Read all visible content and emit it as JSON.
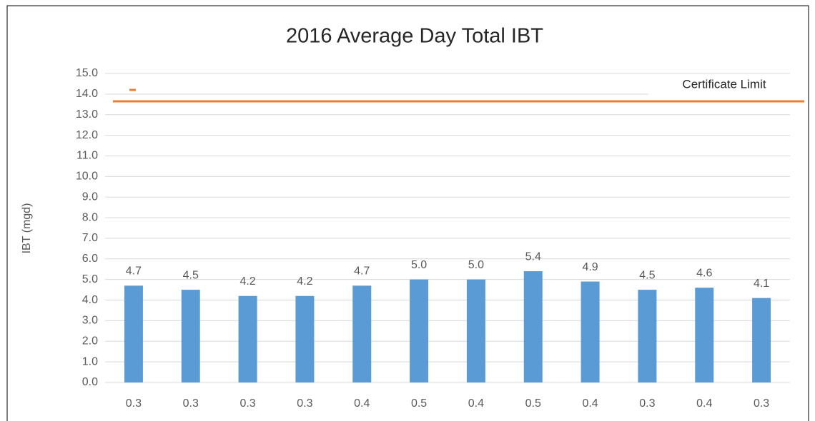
{
  "chart_data": {
    "type": "bar",
    "title": "2016 Average Day Total IBT",
    "y_label": "IBT (mgd)",
    "categories": [
      "0.3",
      "0.3",
      "0.3",
      "0.3",
      "0.4",
      "0.5",
      "0.4",
      "0.5",
      "0.4",
      "0.3",
      "0.4",
      "0.3"
    ],
    "values": [
      4.7,
      4.5,
      4.2,
      4.2,
      4.7,
      5.0,
      5.0,
      5.4,
      4.9,
      4.5,
      4.6,
      4.1
    ],
    "value_labels": [
      "4.7",
      "4.5",
      "4.2",
      "4.2",
      "4.7",
      "5.0",
      "5.0",
      "5.4",
      "4.9",
      "4.5",
      "4.6",
      "4.1"
    ],
    "color": "#5b9bd5",
    "limit": {
      "name": "Certificate Limit",
      "value": 13.65,
      "color": "#ed7d31"
    },
    "ylim": [
      0,
      15
    ],
    "yticks": [
      {
        "value": 0,
        "label": "0.0"
      },
      {
        "value": 1,
        "label": "1.0"
      },
      {
        "value": 2,
        "label": "2.0"
      },
      {
        "value": 3,
        "label": "3.0"
      },
      {
        "value": 4,
        "label": "4.0"
      },
      {
        "value": 5,
        "label": "5.0"
      },
      {
        "value": 6,
        "label": "6.0"
      },
      {
        "value": 7,
        "label": "7.0"
      },
      {
        "value": 8,
        "label": "8.0"
      },
      {
        "value": 9,
        "label": "9.0"
      },
      {
        "value": 10,
        "label": "10.0"
      },
      {
        "value": 11,
        "label": "11.0"
      },
      {
        "value": 12,
        "label": "12.0"
      },
      {
        "value": 13,
        "label": "13.0"
      },
      {
        "value": 14,
        "label": "14.0"
      },
      {
        "value": 15,
        "label": "15.0"
      }
    ],
    "grid": true
  }
}
